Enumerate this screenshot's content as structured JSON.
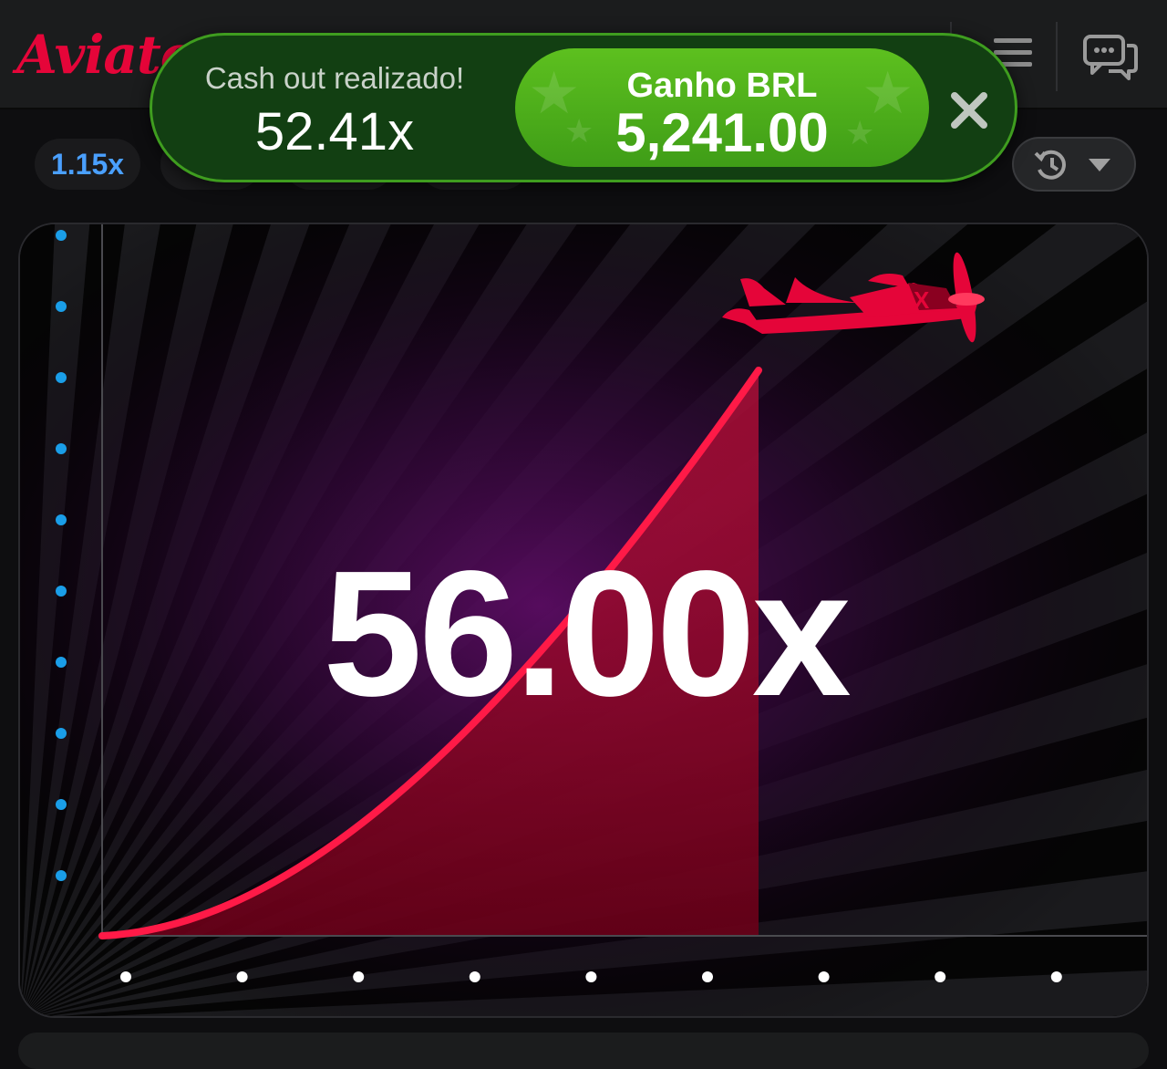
{
  "header": {
    "logo_text": "Aviator",
    "menu_icon": "hamburger-menu-icon",
    "chat_icon": "chat-bubbles-icon"
  },
  "history": {
    "first_multiplier": "1.15x",
    "first_color": "#4aa0ff",
    "history_icon": "clock-history-icon",
    "dropdown_icon": "chevron-down-icon"
  },
  "toast": {
    "label": "Cash out realizado!",
    "multiplier": "52.41x",
    "win_label": "Ganho BRL",
    "win_amount": "5,241.00",
    "close_icon": "close-icon"
  },
  "game": {
    "multiplier": "56.00x",
    "curve_color": "#ff1a47",
    "plane_color": "#e50539",
    "x_axis_dot_color": "#ffffff",
    "y_axis_dot_color": "#1a9ee8",
    "plane_icon": "airplane-icon"
  }
}
